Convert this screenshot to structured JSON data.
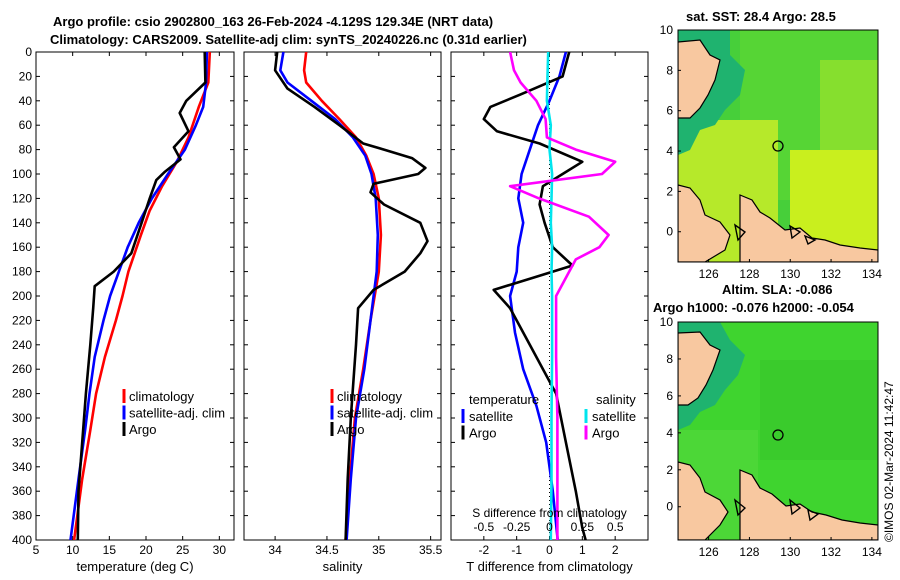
{
  "header": {
    "line1": "Argo profile: csio 2902800_163 26-Feb-2024 -4.129S 129.34E (NRT data)",
    "line2": "Climatology: CARS2009. Satellite-adj clim: synTS_20240226.nc (0.31d earlier)"
  },
  "maps": {
    "sst_title": "sat. SST: 28.4 Argo: 28.5",
    "sla_title_1": "Altim. SLA: -0.086",
    "sla_title_2": "Argo h1000: -0.076 h2000: -0.054",
    "x_ticks": [
      "126",
      "128",
      "130",
      "132",
      "134"
    ],
    "y_ticks": [
      "10",
      "8",
      "6",
      "4",
      "2",
      "0"
    ],
    "colors": {
      "sst_green": "#47cf3a",
      "sst_yellow": "#c9ef1e",
      "sla_green": "#3fd42f",
      "land": "#f8c8a0",
      "sea_teal": "#1fb36f"
    }
  },
  "credit": "©IMOS 02-Mar-2024 11:42:47",
  "chart_data": [
    {
      "type": "line",
      "name": "temperature",
      "xlabel": "temperature (deg C)",
      "ylabel": "",
      "xlim": [
        5,
        32
      ],
      "ylim": [
        400,
        0
      ],
      "x_ticks": [
        "5",
        "10",
        "15",
        "20",
        "25",
        "30"
      ],
      "y_ticks": [
        "0",
        "20",
        "40",
        "60",
        "80",
        "100",
        "120",
        "140",
        "160",
        "180",
        "200",
        "220",
        "240",
        "260",
        "280",
        "300",
        "320",
        "340",
        "360",
        "380",
        "400"
      ],
      "legend": [
        "climatology",
        "satellite-adj. clim",
        "Argo"
      ],
      "series": [
        {
          "name": "climatology",
          "color": "#ff0000",
          "depth": [
            0,
            25,
            45,
            70,
            90,
            110,
            130,
            150,
            180,
            200,
            220,
            250,
            280,
            310,
            350,
            400
          ],
          "values": [
            28.7,
            28.5,
            27.2,
            25.8,
            24.2,
            22.2,
            20.5,
            19.3,
            17.6,
            16.8,
            15.9,
            14.4,
            13.2,
            12.4,
            11.3,
            10.2
          ]
        },
        {
          "name": "satellite-adj. clim",
          "color": "#0000ff",
          "depth": [
            0,
            25,
            45,
            60,
            80,
            100,
            120,
            140,
            160,
            180,
            200,
            220,
            250,
            280,
            310,
            350,
            400
          ],
          "values": [
            28.3,
            28.2,
            27.8,
            26.8,
            25.3,
            23.0,
            20.8,
            19.0,
            17.5,
            16.3,
            15.1,
            14.2,
            13.0,
            12.3,
            11.7,
            10.8,
            9.7
          ]
        },
        {
          "name": "Argo",
          "color": "#000000",
          "depth": [
            0,
            25,
            40,
            50,
            65,
            78,
            88,
            98,
            105,
            120,
            140,
            165,
            180,
            192,
            210,
            240,
            280,
            320,
            360,
            400
          ],
          "values": [
            28.0,
            28.1,
            25.5,
            24.6,
            25.8,
            23.8,
            24.7,
            22.6,
            21.4,
            20.5,
            19.4,
            18.0,
            15.6,
            13.0,
            12.8,
            12.4,
            11.8,
            11.3,
            10.8,
            10.7
          ]
        }
      ]
    },
    {
      "type": "line",
      "name": "salinity",
      "xlabel": "salinity",
      "ylabel": "",
      "xlim": [
        33.7,
        35.6
      ],
      "ylim": [
        400,
        0
      ],
      "x_ticks": [
        "34",
        "34.5",
        "35",
        "35.5"
      ],
      "legend": [
        "climatology",
        "satellite-adj. clim",
        "Argo"
      ],
      "series": [
        {
          "name": "climatology",
          "color": "#ff0000",
          "depth": [
            0,
            15,
            25,
            40,
            55,
            70,
            85,
            100,
            120,
            150,
            180,
            220,
            260,
            300,
            350,
            400
          ],
          "values": [
            34.3,
            34.28,
            34.3,
            34.45,
            34.62,
            34.78,
            34.88,
            34.95,
            35.0,
            35.02,
            35.0,
            34.92,
            34.85,
            34.77,
            34.72,
            34.68
          ]
        },
        {
          "name": "satellite-adj. clim",
          "color": "#0000ff",
          "depth": [
            0,
            15,
            25,
            40,
            55,
            70,
            85,
            100,
            120,
            150,
            180,
            220,
            260,
            300,
            350,
            400
          ],
          "values": [
            34.08,
            34.05,
            34.12,
            34.35,
            34.58,
            34.75,
            34.87,
            34.93,
            34.97,
            34.99,
            34.98,
            34.92,
            34.86,
            34.78,
            34.73,
            34.69
          ]
        },
        {
          "name": "Argo",
          "color": "#000000",
          "depth": [
            0,
            15,
            30,
            45,
            60,
            75,
            80,
            87,
            95,
            100,
            108,
            115,
            125,
            140,
            155,
            165,
            180,
            195,
            210,
            240,
            300,
            350,
            400
          ],
          "values": [
            34.02,
            34.0,
            34.12,
            34.38,
            34.62,
            34.85,
            35.05,
            35.32,
            35.45,
            35.38,
            34.95,
            34.92,
            35.05,
            35.4,
            35.47,
            35.4,
            35.25,
            34.95,
            34.8,
            34.78,
            34.73,
            34.7,
            34.68
          ]
        }
      ]
    },
    {
      "type": "line",
      "name": "difference from climatology",
      "xlabel": "T difference from climatology",
      "x2label": "S difference from climatology",
      "xlim": [
        -3,
        3
      ],
      "ylim": [
        400,
        0
      ],
      "x_ticks": [
        "-2",
        "-1",
        "0",
        "1",
        "2"
      ],
      "x2_ticks": [
        "-0.5",
        "-0.25",
        "0",
        "0.25",
        "0.5"
      ],
      "legend_groups": [
        {
          "header": "temperature",
          "entries": [
            "satellite",
            "Argo"
          ]
        },
        {
          "header": "salinity",
          "entries": [
            "satellite",
            "Argo"
          ]
        }
      ],
      "series": [
        {
          "name": "T satellite",
          "color": "#0000ff",
          "depth": [
            0,
            20,
            40,
            60,
            80,
            100,
            120,
            140,
            160,
            180,
            200,
            230,
            260,
            290,
            320,
            360,
            400
          ],
          "values": [
            0.5,
            0.3,
            0.0,
            -0.35,
            -0.6,
            -0.85,
            -0.95,
            -0.8,
            -0.95,
            -1.0,
            -1.2,
            -1.05,
            -0.8,
            -0.4,
            -0.1,
            0.1,
            0.25
          ]
        },
        {
          "name": "T Argo",
          "color": "#000000",
          "depth": [
            0,
            20,
            35,
            45,
            55,
            65,
            75,
            90,
            100,
            110,
            125,
            140,
            160,
            175,
            185,
            195,
            210,
            240,
            280,
            320,
            360,
            390,
            400
          ],
          "values": [
            0.6,
            0.4,
            -0.9,
            -1.8,
            -2.0,
            -1.6,
            -0.3,
            1.0,
            0.4,
            -0.2,
            -0.3,
            -0.15,
            0.1,
            0.7,
            -0.5,
            -1.7,
            -1.2,
            -0.6,
            0.2,
            0.5,
            0.8,
            1.0,
            1.1
          ]
        },
        {
          "name": "S satellite",
          "color": "#00e5ee",
          "depth": [
            0,
            20,
            40,
            60,
            80,
            100,
            120,
            140,
            160,
            180,
            200,
            250,
            300,
            350,
            400
          ],
          "values": [
            -0.01,
            -0.015,
            -0.02,
            0.01,
            0.0,
            0.02,
            0.015,
            0.01,
            0.02,
            0.015,
            0.02,
            0.02,
            0.015,
            0.015,
            0.01
          ]
        },
        {
          "name": "S Argo",
          "color": "#ff00ff",
          "depth": [
            0,
            15,
            25,
            40,
            55,
            70,
            80,
            90,
            100,
            110,
            120,
            135,
            150,
            160,
            170,
            180,
            200,
            250,
            300,
            350,
            400
          ],
          "values": [
            -0.3,
            -0.27,
            -0.22,
            -0.1,
            -0.03,
            -0.02,
            0.2,
            0.5,
            0.4,
            -0.3,
            -0.08,
            0.3,
            0.45,
            0.38,
            0.2,
            0.15,
            0.05,
            0.05,
            0.06,
            0.06,
            0.06
          ]
        }
      ]
    }
  ]
}
